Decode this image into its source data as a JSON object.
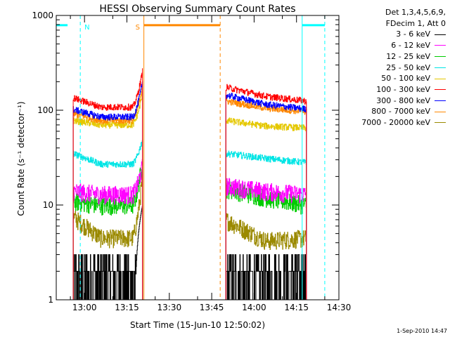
{
  "chart_data": {
    "type": "line",
    "title": "HESSI Observing Summary Count Rates",
    "xlabel": "Start Time (15-Jun-10 12:50:02)",
    "ylabel": "Count Rate (s⁻¹ detector⁻¹)",
    "yscale": "log",
    "ylim": [
      1,
      1000
    ],
    "y_ticks": [
      "1",
      "10",
      "100",
      "1000"
    ],
    "xlim_minutes_after_1250": [
      0,
      100
    ],
    "x_ticks": [
      {
        "label": "13:00",
        "minute": 10
      },
      {
        "label": "13:15",
        "minute": 25
      },
      {
        "label": "13:30",
        "minute": 40
      },
      {
        "label": "13:45",
        "minute": 55
      },
      {
        "label": "14:00",
        "minute": 70
      },
      {
        "label": "14:15",
        "minute": 85
      },
      {
        "label": "14:30",
        "minute": 100
      }
    ],
    "segments": [
      {
        "name": "before_gap",
        "start": "12:56",
        "end": "13:20:30",
        "start_min": 6,
        "end_min": 30.5
      },
      {
        "name": "after_gap",
        "start": "13:50",
        "end": "14:18:30",
        "start_min": 60,
        "end_min": 88.5
      }
    ],
    "series": [
      {
        "name": "3 - 6 keV",
        "color": "#000000",
        "seg1": {
          "level": 1.6,
          "end": 10
        },
        "seg2": {
          "level": 1.6
        }
      },
      {
        "name": "6 - 12 keV",
        "color": "#ff00ff",
        "seg1": {
          "start": 14,
          "level": 13,
          "end": 26
        },
        "seg2": {
          "start": 16,
          "level": 14,
          "end": 13
        }
      },
      {
        "name": "12 - 25 keV",
        "color": "#00cc00",
        "seg1": {
          "start": 11,
          "level": 10,
          "end": 30
        },
        "seg2": {
          "start": 15,
          "level": 12,
          "end": 10
        }
      },
      {
        "name": "25 - 50 keV",
        "color": "#00e5e5",
        "seg1": {
          "start": 35,
          "level": 27,
          "end": 50
        },
        "seg2": {
          "start": 35,
          "level": 31,
          "end": 28
        }
      },
      {
        "name": "50 - 100 keV",
        "color": "#e5c800",
        "seg1": {
          "start": 78,
          "level": 70,
          "end": 150
        },
        "seg2": {
          "start": 78,
          "level": 68,
          "end": 65
        }
      },
      {
        "name": "100 - 300 keV",
        "color": "#ff0000",
        "seg1": {
          "start": 135,
          "level": 108,
          "end": 260
        },
        "seg2": {
          "start": 175,
          "level": 140,
          "end": 125
        }
      },
      {
        "name": "300 - 800 keV",
        "color": "#0000ff",
        "seg1": {
          "start": 102,
          "level": 85,
          "end": 200
        },
        "seg2": {
          "start": 145,
          "level": 115,
          "end": 103
        }
      },
      {
        "name": "800 - 7000 keV",
        "color": "#ff8800",
        "seg1": {
          "start": 92,
          "level": 78,
          "end": 185
        },
        "seg2": {
          "start": 125,
          "level": 105,
          "end": 97
        }
      },
      {
        "name": "7000 - 20000 keV",
        "color": "#9b8a00",
        "seg1": {
          "start": 7.5,
          "level": 4.5,
          "end": 20
        },
        "seg2": {
          "start": 7,
          "level": 4.2,
          "end": 4.5
        }
      }
    ],
    "flags": [
      {
        "label": "N",
        "color": "#00ffff",
        "from_min": 0,
        "to_min": 4,
        "line_min": 8.5
      },
      {
        "label": "S",
        "color": "#ff8800",
        "from_min": 31,
        "to_min": 58,
        "line_min": 31,
        "dash_min": 58
      },
      {
        "label": "",
        "color": "#00ffff",
        "from_min": 87,
        "to_min": 95,
        "line_min": 87,
        "dash_min": 95
      }
    ],
    "grid": false
  },
  "legend": {
    "header": [
      "Det 1,3,4,5,6,9,",
      "FDecim 1, Att 0"
    ]
  },
  "footer": {
    "date_stamp": "1-Sep-2010 14:47"
  }
}
